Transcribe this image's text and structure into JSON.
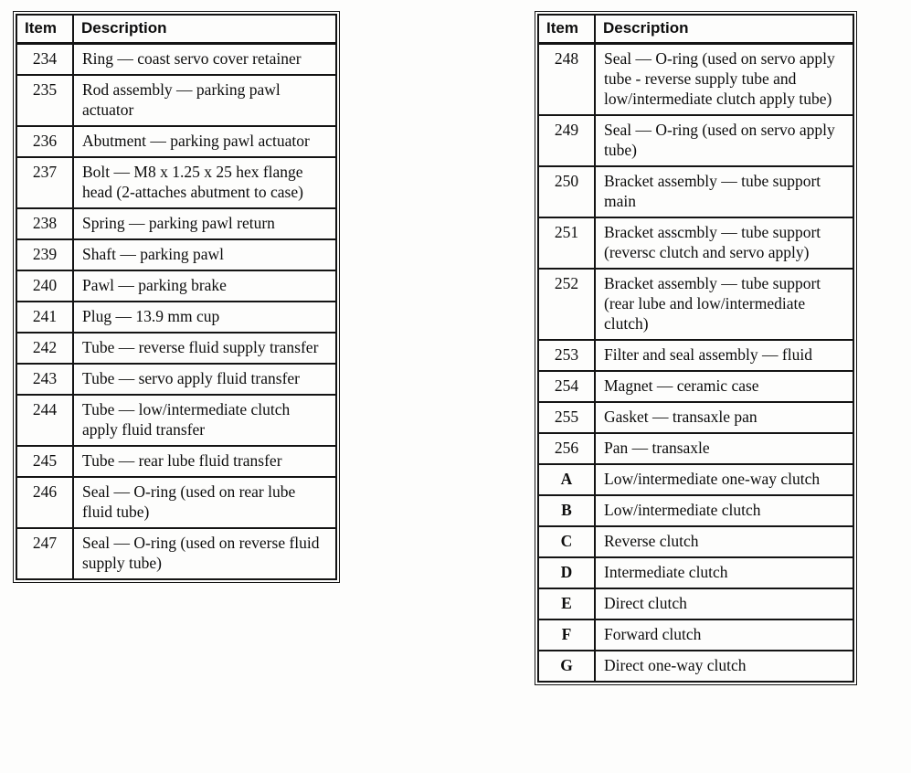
{
  "tables": [
    {
      "name": "parts-table-left",
      "headers": {
        "item": "Item",
        "description": "Description"
      },
      "rows": [
        {
          "item": "234",
          "description": "Ring — coast servo cover retainer"
        },
        {
          "item": "235",
          "description": "Rod assembly — parking pawl actuator"
        },
        {
          "item": "236",
          "description": "Abutment — parking pawl actuator"
        },
        {
          "item": "237",
          "description": "Bolt — M8 x 1.25 x 25 hex flange head (2-attaches abutment to case)"
        },
        {
          "item": "238",
          "description": "Spring — parking pawl return"
        },
        {
          "item": "239",
          "description": "Shaft — parking pawl"
        },
        {
          "item": "240",
          "description": "Pawl — parking brake"
        },
        {
          "item": "241",
          "description": "Plug — 13.9 mm cup"
        },
        {
          "item": "242",
          "description": "Tube — reverse fluid supply transfer"
        },
        {
          "item": "243",
          "description": "Tube — servo apply fluid transfer"
        },
        {
          "item": "244",
          "description": "Tube — low/intermediate clutch apply fluid transfer"
        },
        {
          "item": "245",
          "description": "Tube — rear lube fluid transfer"
        },
        {
          "item": "246",
          "description": "Seal — O-ring (used on rear lube fluid tube)"
        },
        {
          "item": "247",
          "description": "Seal — O-ring (used on reverse fluid supply tube)"
        }
      ]
    },
    {
      "name": "parts-table-right",
      "headers": {
        "item": "Item",
        "description": "Description"
      },
      "rows": [
        {
          "item": "248",
          "description": "Seal — O-ring (used on servo apply tube - reverse supply tube and low/intermediate clutch apply tube)"
        },
        {
          "item": "249",
          "description": "Seal — O-ring (used on servo apply tube)"
        },
        {
          "item": "250",
          "description": "Bracket assembly — tube support main"
        },
        {
          "item": "251",
          "description": "Bracket asscmbly — tube support (reversc clutch and servo apply)"
        },
        {
          "item": "252",
          "description": "Bracket assembly — tube support (rear lube and low/intermediate clutch)"
        },
        {
          "item": "253",
          "description": "Filter and seal assembly — fluid"
        },
        {
          "item": "254",
          "description": "Magnet — ceramic case"
        },
        {
          "item": "255",
          "description": "Gasket — transaxle pan"
        },
        {
          "item": "256",
          "description": "Pan — transaxle"
        },
        {
          "item": "A",
          "description": "Low/intermediate one-way clutch"
        },
        {
          "item": "B",
          "description": "Low/intermediate clutch"
        },
        {
          "item": "C",
          "description": "Reverse clutch"
        },
        {
          "item": "D",
          "description": "Intermediate clutch"
        },
        {
          "item": "E",
          "description": "Direct clutch"
        },
        {
          "item": "F",
          "description": "Forward clutch"
        },
        {
          "item": "G",
          "description": "Direct one-way clutch"
        }
      ]
    }
  ]
}
